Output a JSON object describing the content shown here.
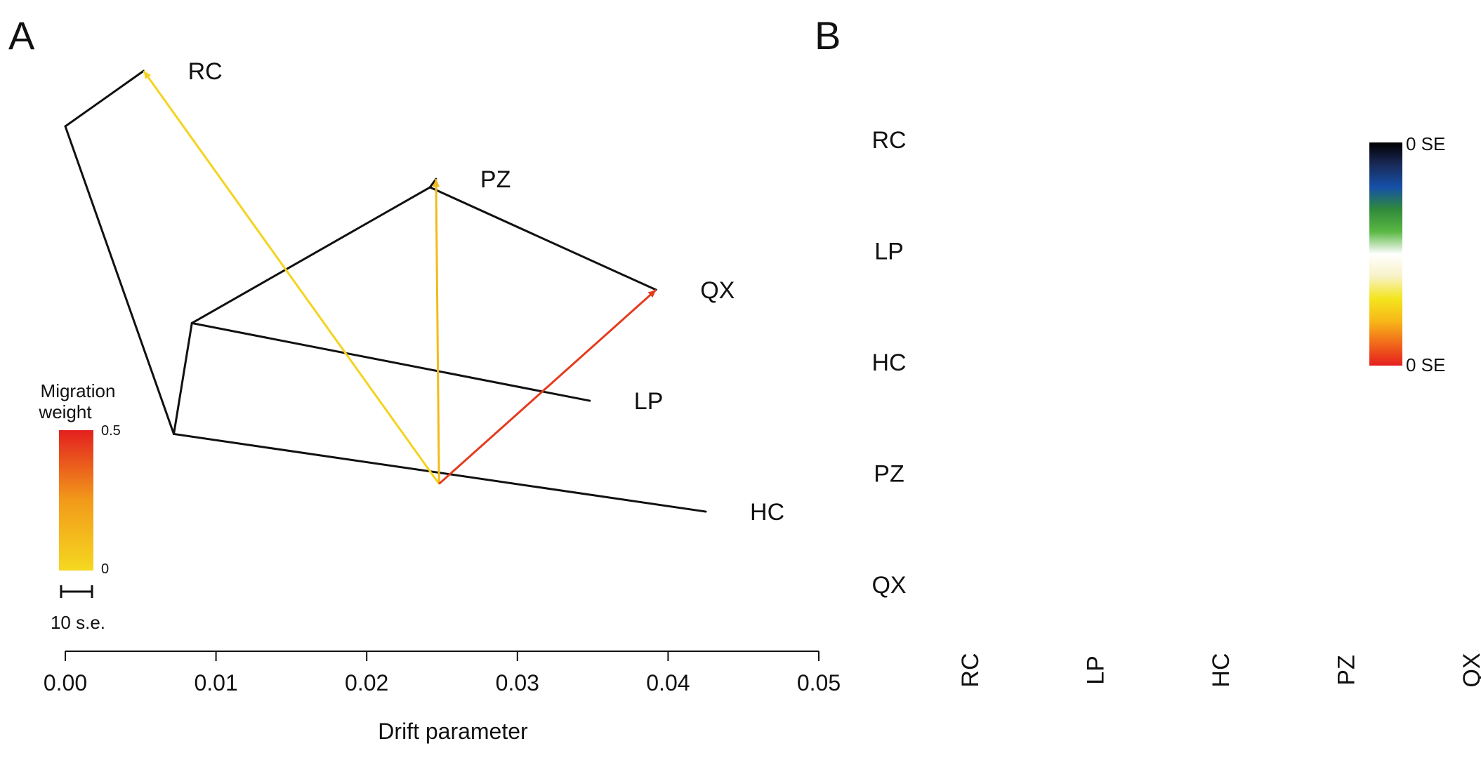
{
  "panel_a": {
    "label": "A",
    "chart_data": {
      "type": "tree",
      "xlabel": "Drift parameter",
      "xlim": [
        0,
        0.05
      ],
      "xticks": [
        "0.00",
        "0.01",
        "0.02",
        "0.03",
        "0.04",
        "0.05"
      ],
      "tick_values": [
        0,
        0.01,
        0.02,
        0.03,
        0.04,
        0.05
      ],
      "nodes": [
        {
          "id": "n1",
          "drift": 0.0,
          "order": 2
        },
        {
          "id": "n2",
          "drift": 0.0072,
          "order": 7.55
        },
        {
          "id": "n3",
          "drift": 0.0084,
          "order": 5.55
        },
        {
          "id": "n4",
          "drift": 0.0242,
          "order": 3.1
        },
        {
          "id": "nRC",
          "drift": 0.0052,
          "order": 1,
          "label": "RC"
        },
        {
          "id": "nPZ",
          "drift": 0.0246,
          "order": 2.95,
          "label": "PZ"
        },
        {
          "id": "nQX",
          "drift": 0.0392,
          "order": 4.95,
          "label": "QX"
        },
        {
          "id": "nLP",
          "drift": 0.0348,
          "order": 6.95,
          "label": "LP"
        },
        {
          "id": "nHC",
          "drift": 0.0425,
          "order": 8.95,
          "label": "HC"
        },
        {
          "id": "nMig",
          "drift": 0.0248,
          "order": 8.45
        }
      ],
      "edges": [
        [
          "n1",
          "nRC"
        ],
        [
          "n1",
          "n2"
        ],
        [
          "n2",
          "n3"
        ],
        [
          "n2",
          "nHC"
        ],
        [
          "n3",
          "n4"
        ],
        [
          "n3",
          "nLP"
        ],
        [
          "n4",
          "nPZ"
        ],
        [
          "n4",
          "nQX"
        ]
      ],
      "migrations": [
        {
          "from": "nMig",
          "to": "nRC",
          "weight": 0.02,
          "color": "#f5d31f"
        },
        {
          "from": "nMig",
          "to": "nPZ",
          "weight": 0.08,
          "color": "#f4ba1a"
        },
        {
          "from": "nMig",
          "to": "nQX",
          "weight": 0.48,
          "color": "#e33c1f"
        }
      ],
      "legend": {
        "title_line1": "Migration",
        "title_line2": "weight",
        "max_label": "0.5",
        "min_label": "0",
        "scale_label": "10 s.e.",
        "color_low": "#f5d820",
        "color_high": "#e3201f"
      }
    }
  },
  "panel_b": {
    "label": "B",
    "chart_data": {
      "type": "heatmap",
      "rows": [
        "RC",
        "LP",
        "HC",
        "PZ",
        "QX"
      ],
      "columns": [
        "RC",
        "LP",
        "HC",
        "PZ",
        "QX"
      ],
      "values": [
        [
          0,
          0,
          0,
          0,
          0
        ],
        [
          0,
          0,
          0,
          0,
          0
        ],
        [
          0,
          0,
          0,
          0,
          0
        ],
        [
          0,
          0,
          0,
          0,
          0
        ],
        [
          0,
          0,
          0,
          0,
          0
        ]
      ],
      "colorbar": {
        "top_label": "0 SE",
        "bottom_label": "0 SE",
        "stops": [
          "#000000",
          "#1a2a5a",
          "#1650a8",
          "#2f8a3a",
          "#5ab844",
          "#ffffff",
          "#f7f2c8",
          "#f3e51d",
          "#f7b818",
          "#f26a1a",
          "#e41f1f"
        ]
      }
    }
  }
}
